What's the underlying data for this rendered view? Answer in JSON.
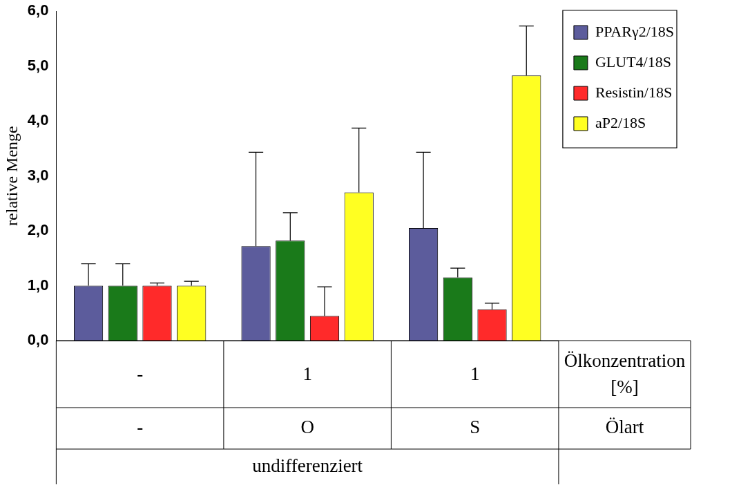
{
  "chart_data": {
    "type": "bar",
    "ylabel": "relative Menge",
    "categories": [
      "-",
      "1",
      "1"
    ],
    "series": [
      {
        "name": "PPARγ2/18S",
        "color": "#5c5c9c",
        "values": [
          1.0,
          1.72,
          2.05
        ],
        "errors": [
          [
            1.0,
            1.4
          ],
          [
            1.72,
            3.43
          ],
          [
            2.05,
            3.43
          ]
        ]
      },
      {
        "name": "GLUT4/18S",
        "color": "#1a7a1a",
        "values": [
          1.0,
          1.82,
          1.15
        ],
        "errors": [
          [
            1.0,
            1.4
          ],
          [
            1.82,
            2.33
          ],
          [
            1.15,
            1.32
          ]
        ]
      },
      {
        "name": "Resistin/18S",
        "color": "#ff2a2a",
        "values": [
          1.0,
          0.45,
          0.57
        ],
        "errors": [
          [
            1.0,
            1.05
          ],
          [
            0.45,
            0.98
          ],
          [
            0.57,
            0.68
          ]
        ]
      },
      {
        "name": "aP2/18S",
        "color": "#ffff22",
        "values": [
          1.0,
          2.7,
          4.83
        ],
        "errors": [
          [
            1.0,
            1.08
          ],
          [
            2.7,
            3.87
          ],
          [
            4.83,
            5.73
          ]
        ]
      }
    ],
    "ylim": [
      0,
      6
    ],
    "yticks": [
      {
        "value": 0,
        "label": "0,0"
      },
      {
        "value": 1,
        "label": "1,0"
      },
      {
        "value": 2,
        "label": "2,0"
      },
      {
        "value": 3,
        "label": "3,0"
      },
      {
        "value": 4,
        "label": "4,0"
      },
      {
        "value": 5,
        "label": "5,0"
      },
      {
        "value": 6,
        "label": "6,0"
      }
    ],
    "annotations": [
      "Ölkonzentration [%]",
      "-",
      "O",
      "S",
      "Ölart",
      "undifferenziert"
    ],
    "grid": false,
    "legend": "top right"
  }
}
